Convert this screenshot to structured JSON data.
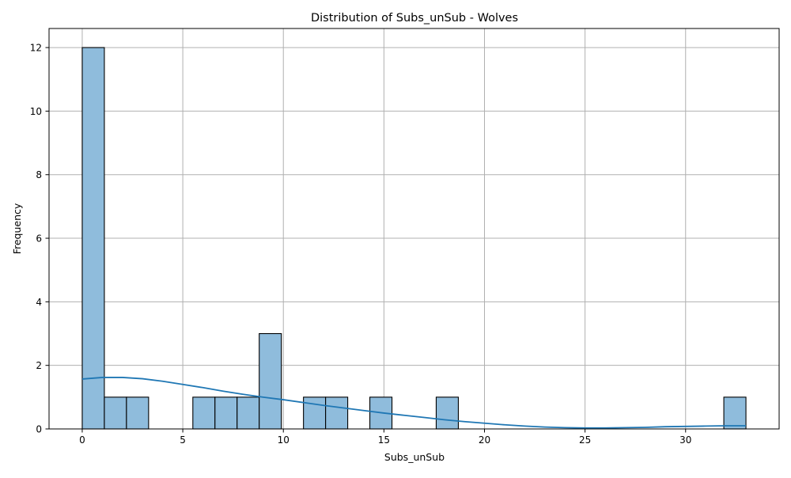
{
  "chart_data": {
    "type": "bar",
    "subtype": "histogram",
    "title": "Distribution of Subs_unSub - Wolves",
    "xlabel": "Subs_unSub",
    "ylabel": "Frequency",
    "xlim": [
      -1.65,
      34.65
    ],
    "ylim": [
      0,
      12.6
    ],
    "xticks": [
      0,
      5,
      10,
      15,
      20,
      25,
      30
    ],
    "yticks": [
      0,
      2,
      4,
      6,
      8,
      10,
      12
    ],
    "grid": true,
    "bar_color": "#8fbcdc",
    "edge_color": "#000000",
    "kde_color": "#1f77b4",
    "grid_color": "#b0b0b0",
    "bins": [
      {
        "x0": 0.0,
        "x1": 1.1,
        "count": 12
      },
      {
        "x0": 1.1,
        "x1": 2.2,
        "count": 1
      },
      {
        "x0": 2.2,
        "x1": 3.3,
        "count": 1
      },
      {
        "x0": 5.5,
        "x1": 6.6,
        "count": 1
      },
      {
        "x0": 6.6,
        "x1": 7.7,
        "count": 1
      },
      {
        "x0": 7.7,
        "x1": 8.8,
        "count": 1
      },
      {
        "x0": 8.8,
        "x1": 9.9,
        "count": 3
      },
      {
        "x0": 11.0,
        "x1": 12.1,
        "count": 1
      },
      {
        "x0": 12.1,
        "x1": 13.2,
        "count": 1
      },
      {
        "x0": 14.3,
        "x1": 15.4,
        "count": 1
      },
      {
        "x0": 17.6,
        "x1": 18.7,
        "count": 1
      },
      {
        "x0": 31.9,
        "x1": 33.0,
        "count": 1
      }
    ],
    "kde": {
      "x": [
        0,
        1,
        2,
        3,
        4,
        5,
        6,
        7,
        8,
        9,
        10,
        11,
        12,
        13,
        14,
        15,
        16,
        17,
        18,
        19,
        20,
        21,
        22,
        23,
        24,
        25,
        26,
        27,
        28,
        29,
        30,
        31,
        32,
        33
      ],
      "y": [
        1.57,
        1.62,
        1.62,
        1.58,
        1.5,
        1.4,
        1.3,
        1.19,
        1.09,
        1.0,
        0.92,
        0.83,
        0.74,
        0.66,
        0.58,
        0.5,
        0.43,
        0.36,
        0.29,
        0.23,
        0.18,
        0.13,
        0.09,
        0.06,
        0.04,
        0.03,
        0.03,
        0.04,
        0.05,
        0.07,
        0.08,
        0.09,
        0.1,
        0.1
      ]
    }
  }
}
